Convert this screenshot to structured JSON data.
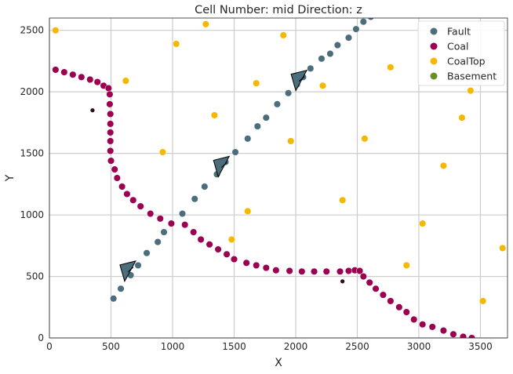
{
  "chart_data": {
    "type": "scatter",
    "title": "Cell Number: mid Direction: z",
    "xlabel": "X",
    "ylabel": "Y",
    "xlim": [
      0,
      3720
    ],
    "ylim": [
      0,
      2600
    ],
    "xticks": [
      "0",
      "500",
      "1000",
      "1500",
      "2000",
      "2500",
      "3000",
      "3500"
    ],
    "xtick_values": [
      0,
      500,
      1000,
      1500,
      2000,
      2500,
      3000,
      3500
    ],
    "yticks": [
      "0",
      "500",
      "1000",
      "1500",
      "2000",
      "2500"
    ],
    "ytick_values": [
      0,
      500,
      1000,
      1500,
      2000,
      2500
    ],
    "grid": true,
    "legend_position": "top-right",
    "series": [
      {
        "name": "Fault",
        "color": "#4b6d7c",
        "points": [
          [
            520,
            320
          ],
          [
            580,
            400
          ],
          [
            660,
            510
          ],
          [
            720,
            590
          ],
          [
            790,
            690
          ],
          [
            880,
            780
          ],
          [
            930,
            860
          ],
          [
            990,
            930
          ],
          [
            1080,
            1010
          ],
          [
            1180,
            1130
          ],
          [
            1260,
            1230
          ],
          [
            1360,
            1330
          ],
          [
            1430,
            1430
          ],
          [
            1510,
            1510
          ],
          [
            1610,
            1620
          ],
          [
            1690,
            1720
          ],
          [
            1760,
            1790
          ],
          [
            1850,
            1900
          ],
          [
            1940,
            1990
          ],
          [
            2010,
            2060
          ],
          [
            2060,
            2120
          ],
          [
            2120,
            2190
          ],
          [
            2210,
            2270
          ],
          [
            2280,
            2310
          ],
          [
            2340,
            2380
          ],
          [
            2430,
            2440
          ],
          [
            2490,
            2510
          ],
          [
            2550,
            2570
          ],
          [
            2610,
            2610
          ]
        ]
      },
      {
        "name": "Coal",
        "color": "#9c0050",
        "points": [
          [
            50,
            2180
          ],
          [
            120,
            2160
          ],
          [
            190,
            2140
          ],
          [
            260,
            2120
          ],
          [
            330,
            2100
          ],
          [
            390,
            2080
          ],
          [
            440,
            2050
          ],
          [
            480,
            2030
          ],
          [
            490,
            1980
          ],
          [
            490,
            1900
          ],
          [
            495,
            1820
          ],
          [
            495,
            1740
          ],
          [
            495,
            1670
          ],
          [
            495,
            1600
          ],
          [
            495,
            1520
          ],
          [
            500,
            1440
          ],
          [
            530,
            1370
          ],
          [
            550,
            1300
          ],
          [
            590,
            1230
          ],
          [
            630,
            1170
          ],
          [
            680,
            1120
          ],
          [
            740,
            1070
          ],
          [
            820,
            1010
          ],
          [
            900,
            970
          ],
          [
            990,
            930
          ],
          [
            1100,
            920
          ],
          [
            1170,
            860
          ],
          [
            1230,
            800
          ],
          [
            1300,
            760
          ],
          [
            1370,
            720
          ],
          [
            1440,
            680
          ],
          [
            1500,
            640
          ],
          [
            1600,
            610
          ],
          [
            1680,
            590
          ],
          [
            1760,
            570
          ],
          [
            1840,
            550
          ],
          [
            1950,
            545
          ],
          [
            2050,
            540
          ],
          [
            2150,
            540
          ],
          [
            2250,
            540
          ],
          [
            2360,
            540
          ],
          [
            2430,
            545
          ],
          [
            2480,
            550
          ],
          [
            2520,
            545
          ],
          [
            2550,
            500
          ],
          [
            2600,
            450
          ],
          [
            2650,
            400
          ],
          [
            2710,
            350
          ],
          [
            2770,
            300
          ],
          [
            2840,
            250
          ],
          [
            2900,
            210
          ],
          [
            2960,
            150
          ],
          [
            3030,
            110
          ],
          [
            3110,
            90
          ],
          [
            3200,
            60
          ],
          [
            3280,
            30
          ],
          [
            3360,
            10
          ],
          [
            3430,
            0
          ]
        ]
      },
      {
        "name": "CoalTop",
        "color": "#f5b800",
        "points": [
          [
            50,
            2500
          ],
          [
            1270,
            2550
          ],
          [
            1030,
            2390
          ],
          [
            1900,
            2460
          ],
          [
            620,
            2090
          ],
          [
            1680,
            2070
          ],
          [
            2220,
            2050
          ],
          [
            2770,
            2200
          ],
          [
            3420,
            2010
          ],
          [
            1340,
            1810
          ],
          [
            3350,
            1790
          ],
          [
            1960,
            1600
          ],
          [
            2560,
            1620
          ],
          [
            920,
            1510
          ],
          [
            3200,
            1400
          ],
          [
            2380,
            1120
          ],
          [
            1610,
            1030
          ],
          [
            3030,
            930
          ],
          [
            1480,
            800
          ],
          [
            2900,
            590
          ],
          [
            3680,
            730
          ],
          [
            3520,
            300
          ]
        ]
      },
      {
        "name": "Basement",
        "color": "#6b8e23",
        "points": []
      }
    ],
    "markers": [
      {
        "kind": "dot",
        "x": 350,
        "y": 1850
      },
      {
        "kind": "dot",
        "x": 2380,
        "y": 460
      },
      {
        "kind": "cone",
        "x": 630,
        "y": 530
      },
      {
        "kind": "cone",
        "x": 1390,
        "y": 1380
      },
      {
        "kind": "cone",
        "x": 2020,
        "y": 2080
      }
    ]
  }
}
